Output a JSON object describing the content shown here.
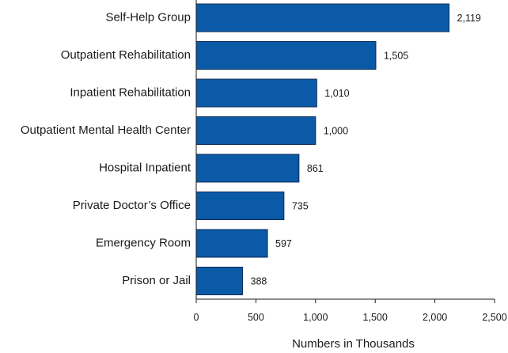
{
  "chart_data": {
    "type": "bar",
    "orientation": "horizontal",
    "categories": [
      "Self-Help Group",
      "Outpatient Rehabilitation",
      "Inpatient Rehabilitation",
      "Outpatient Mental Health Center",
      "Hospital Inpatient",
      "Private Doctor’s Office",
      "Emergency Room",
      "Prison or Jail"
    ],
    "values": [
      2119,
      1505,
      1010,
      1000,
      861,
      735,
      597,
      388
    ],
    "value_labels": [
      "2,119",
      "1,505",
      "1,010",
      "1,000",
      "861",
      "735",
      "597",
      "388"
    ],
    "xlabel": "Numbers in Thousands",
    "ylabel": "",
    "xlim": [
      0,
      2500
    ],
    "xticks": [
      0,
      500,
      1000,
      1500,
      2000,
      2500
    ],
    "xtick_labels": [
      "0",
      "500",
      "1,000",
      "1,500",
      "2,000",
      "2,500"
    ],
    "grid": false,
    "bar_color": "#0b5aa8",
    "bar_edge_color": "#0a2b55"
  }
}
